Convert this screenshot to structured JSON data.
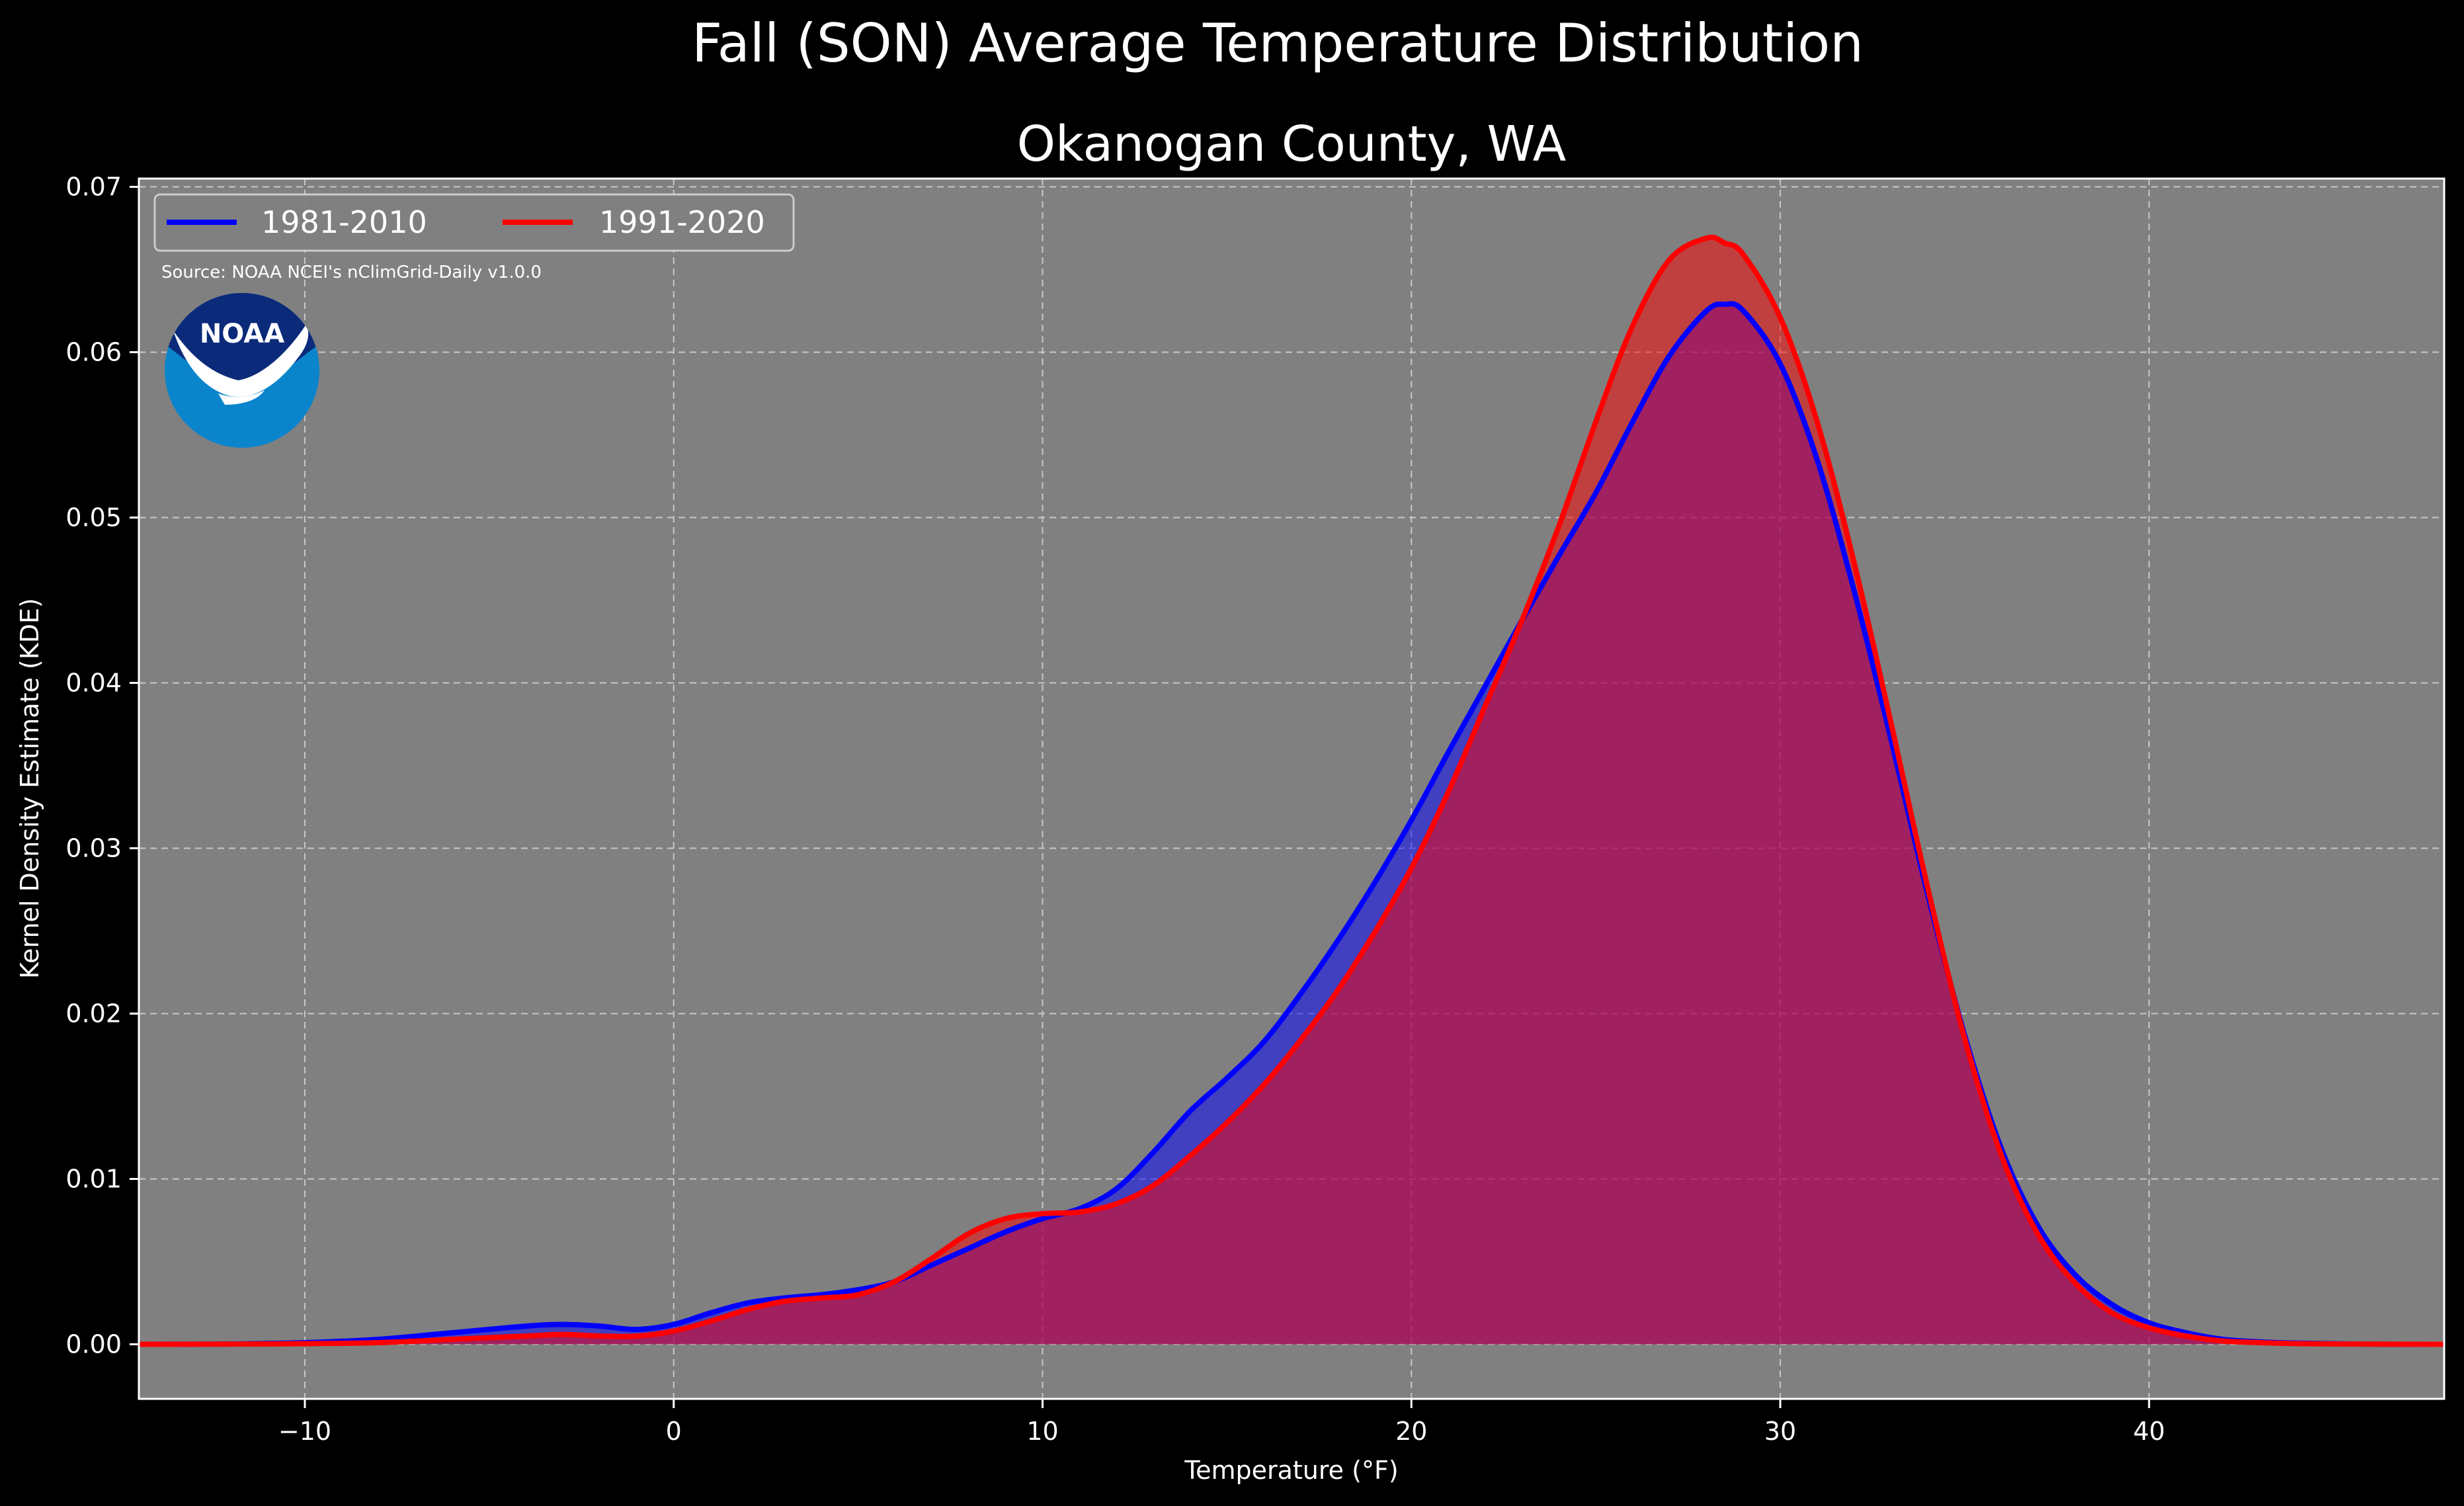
{
  "chart_data": {
    "type": "area",
    "title": "Fall (SON) Average Temperature Distribution",
    "subtitle": "Okanogan County, WA",
    "xlabel": "Temperature (°F)",
    "ylabel": "Kernel Density Estimate (KDE)",
    "source": "Source: NOAA NCEI's nClimGrid-Daily v1.0.0",
    "logo_text": "NOAA",
    "xlim": [
      -14.5,
      48
    ],
    "ylim": [
      -0.0033,
      0.0705
    ],
    "x_ticks": [
      -10,
      0,
      10,
      20,
      30,
      40
    ],
    "x_tick_labels": [
      "−10",
      "0",
      "10",
      "20",
      "30",
      "40"
    ],
    "y_ticks": [
      0.0,
      0.01,
      0.02,
      0.03,
      0.04,
      0.05,
      0.06,
      0.07
    ],
    "y_tick_labels": [
      "0.00",
      "0.01",
      "0.02",
      "0.03",
      "0.04",
      "0.05",
      "0.06",
      "0.07"
    ],
    "grid": true,
    "legend_position": "top-left",
    "background_color": "#808080",
    "x": [
      -14.5,
      -12,
      -10,
      -8,
      -6,
      -4,
      -3,
      -2,
      -1,
      0,
      1,
      2,
      3,
      4,
      5,
      6,
      7,
      8,
      9,
      10,
      11,
      12,
      13,
      14,
      15,
      16,
      17,
      18,
      19,
      20,
      21,
      22,
      23,
      24,
      25,
      26,
      27,
      28,
      28.5,
      29,
      30,
      31,
      32,
      33,
      34,
      35,
      36,
      37,
      38,
      39,
      40,
      41,
      42,
      43,
      44,
      46,
      48
    ],
    "series": [
      {
        "name": "1981-2010",
        "color": "#0000ff",
        "fill": "rgba(0,0,255,0.5)",
        "values": [
          0,
          2e-05,
          0.0001,
          0.0003,
          0.0007,
          0.0011,
          0.0012,
          0.0011,
          0.0009,
          0.0012,
          0.0019,
          0.0025,
          0.0028,
          0.003,
          0.0033,
          0.0038,
          0.0048,
          0.0058,
          0.0068,
          0.0076,
          0.0082,
          0.0094,
          0.0116,
          0.0141,
          0.0161,
          0.0183,
          0.0212,
          0.0244,
          0.0279,
          0.0317,
          0.0358,
          0.0398,
          0.0438,
          0.0477,
          0.0515,
          0.0558,
          0.0598,
          0.0625,
          0.0629,
          0.0625,
          0.0593,
          0.0535,
          0.0456,
          0.0366,
          0.0272,
          0.0187,
          0.0118,
          0.0071,
          0.0042,
          0.0024,
          0.0013,
          0.0007,
          0.0003,
          0.00015,
          7e-05,
          1e-05,
          0
        ]
      },
      {
        "name": "1991-2020",
        "color": "#ff0000",
        "fill": "rgba(255,0,0,0.5)",
        "values": [
          0,
          1e-05,
          4e-05,
          0.0001,
          0.0003,
          0.0005,
          0.0006,
          0.0005,
          0.0005,
          0.0008,
          0.0014,
          0.0021,
          0.0026,
          0.0028,
          0.003,
          0.0038,
          0.0052,
          0.0067,
          0.0076,
          0.0079,
          0.008,
          0.0085,
          0.0096,
          0.0114,
          0.0134,
          0.0157,
          0.0184,
          0.0214,
          0.0249,
          0.0288,
          0.0334,
          0.0386,
          0.0438,
          0.0495,
          0.0558,
          0.0616,
          0.0656,
          0.0669,
          0.0666,
          0.0659,
          0.0621,
          0.0558,
          0.0473,
          0.0376,
          0.0276,
          0.0185,
          0.0114,
          0.0066,
          0.0037,
          0.0019,
          0.001,
          0.0005,
          0.0002,
          0.0001,
          4e-05,
          1e-05,
          0
        ]
      }
    ]
  }
}
